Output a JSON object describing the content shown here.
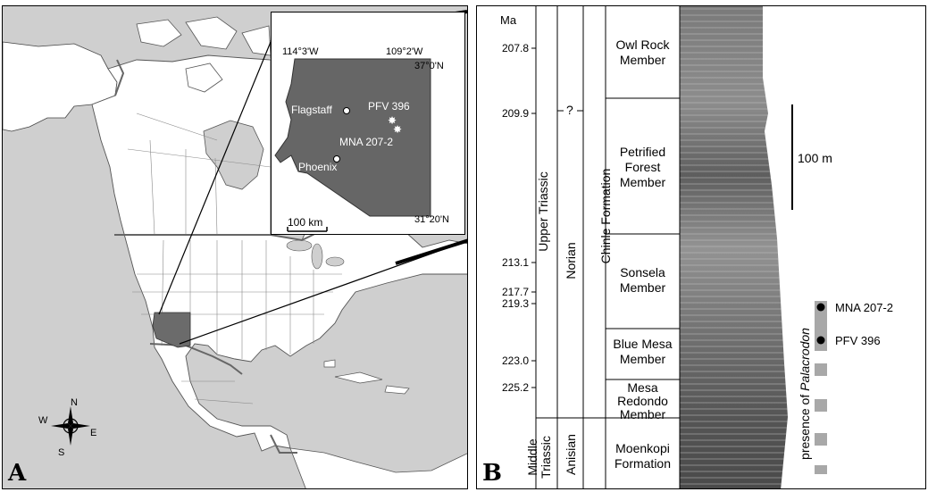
{
  "panel_a": {
    "letter": "A",
    "inset": {
      "lon_west": "114°3'W",
      "lon_east": "109°2'W",
      "lat_north": "37°0'N",
      "lat_south": "31°20'N",
      "city_1": "Flagstaff",
      "city_2": "Phoenix",
      "site_1": "PFV 396",
      "site_2": "MNA 207-2",
      "scale": "100 km"
    },
    "compass": {
      "n": "N",
      "e": "E",
      "s": "S",
      "w": "W"
    }
  },
  "panel_b": {
    "letter": "B",
    "age_header": "Ma",
    "ages": [
      "207.8",
      "209.9",
      "213.1",
      "217.7",
      "219.3",
      "223.0",
      "225.2"
    ],
    "periods": {
      "upper_triassic": "Upper Triassic",
      "middle_triassic": "Middle Triassic"
    },
    "stages": {
      "norian": "Norian",
      "anisian": "Anisian",
      "uncertain": "?"
    },
    "formation": "Chinle Formation",
    "members": {
      "owl_rock": "Owl Rock Member",
      "petrified_forest": "Petrified Forest Member",
      "sonsela": "Sonsela Member",
      "blue_mesa": "Blue Mesa Member",
      "mesa_redondo": "Mesa Redondo Member",
      "moenkopi": "Moenkopi Formation"
    },
    "scale_bar": "100 m",
    "localities": [
      "MNA 207-2",
      "PFV 396"
    ],
    "presence_prefix": "presence of ",
    "presence_taxon": "Palacrodon"
  }
}
